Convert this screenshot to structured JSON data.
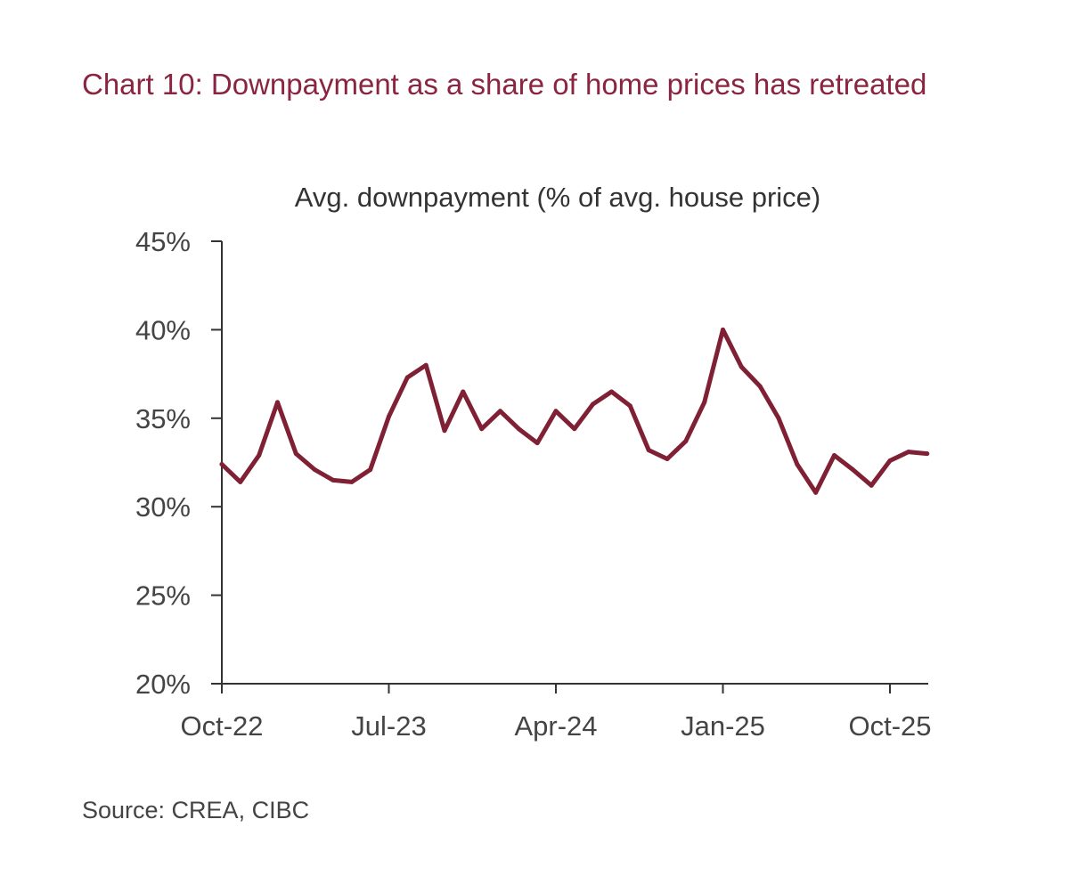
{
  "page": {
    "title": "Chart 10: Downpayment as a share of home prices has retreated",
    "source": "Source: CREA, CIBC"
  },
  "chart_data": {
    "type": "line",
    "title": "Chart 10: Downpayment as a share of home prices has retreated",
    "subtitle": "Avg. downpayment (% of avg. house price)",
    "xlabel": "",
    "ylabel": "",
    "ylim": [
      20,
      45
    ],
    "yticks": [
      20,
      25,
      30,
      35,
      40,
      45
    ],
    "ytick_labels": [
      "20%",
      "25%",
      "30%",
      "35%",
      "40%",
      "45%"
    ],
    "xtick_labels": [
      "Oct-22",
      "Jul-23",
      "Apr-24",
      "Jan-25",
      "Oct-25"
    ],
    "xticks": [
      "2022-10",
      "2023-07",
      "2024-04",
      "2025-01",
      "2025-10"
    ],
    "xlim": [
      "2022-10",
      "2025-12"
    ],
    "grid": false,
    "legend": "none",
    "line_color": "#7f2035",
    "x": [
      "2022-10",
      "2022-11",
      "2022-12",
      "2023-01",
      "2023-02",
      "2023-03",
      "2023-04",
      "2023-05",
      "2023-06",
      "2023-07",
      "2023-08",
      "2023-09",
      "2023-10",
      "2023-11",
      "2023-12",
      "2024-01",
      "2024-02",
      "2024-03",
      "2024-04",
      "2024-05",
      "2024-06",
      "2024-07",
      "2024-08",
      "2024-09",
      "2024-10",
      "2024-11",
      "2024-12",
      "2025-01",
      "2025-02",
      "2025-03",
      "2025-04",
      "2025-05",
      "2025-06",
      "2025-07",
      "2025-08",
      "2025-09",
      "2025-10",
      "2025-11",
      "2025-12"
    ],
    "values": [
      32.4,
      31.4,
      32.9,
      35.9,
      33.0,
      32.1,
      31.5,
      31.4,
      32.1,
      35.1,
      37.3,
      38.0,
      34.3,
      36.5,
      34.4,
      35.4,
      34.4,
      33.6,
      35.4,
      34.4,
      35.8,
      36.5,
      35.7,
      33.2,
      32.7,
      33.7,
      35.9,
      40.0,
      37.9,
      36.8,
      35.0,
      32.4,
      30.8,
      32.9,
      32.1,
      31.2,
      32.6,
      33.1,
      33.0
    ]
  }
}
